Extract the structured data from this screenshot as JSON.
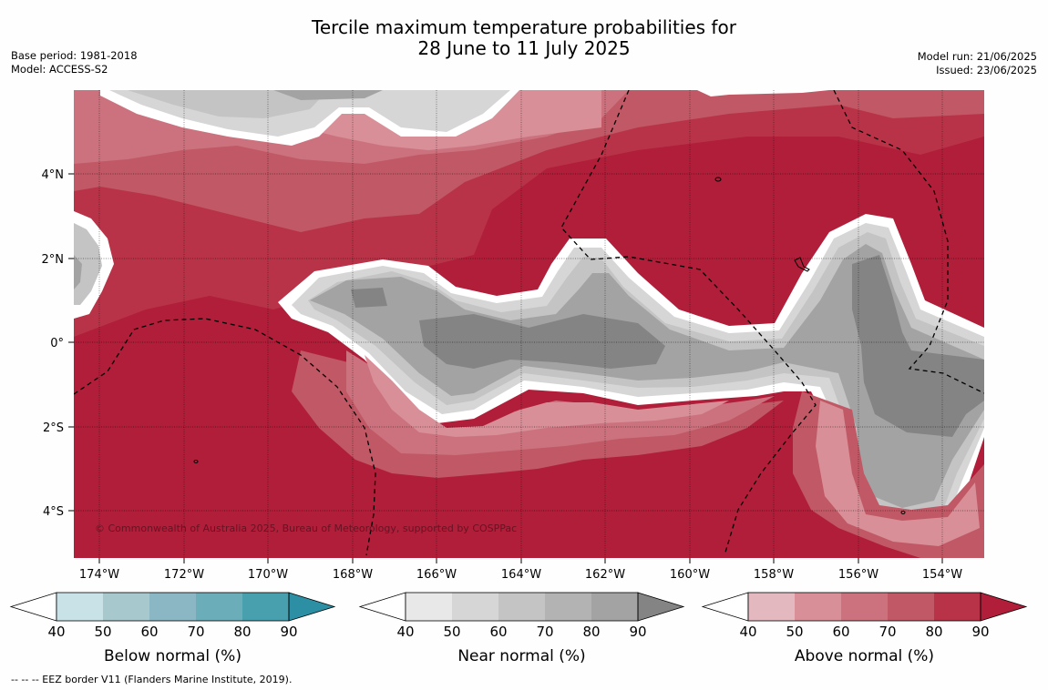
{
  "title": {
    "line1": "Tercile maximum temperature probabilities for",
    "line2": "28 June to 11 July 2025"
  },
  "meta_left": {
    "base_period": "Base period: 1981-2018",
    "model": "Model: ACCESS-S2"
  },
  "meta_right": {
    "model_run": "Model run: 21/06/2025",
    "issued": "Issued: 23/06/2025"
  },
  "map": {
    "copyright": "© Commonwealth of Australia 2025, Bureau of Meteorology, supported by COSPPac",
    "lon_labels": [
      "174°W",
      "172°W",
      "170°W",
      "168°W",
      "166°W",
      "164°W",
      "162°W",
      "160°W",
      "158°W",
      "156°W",
      "154°W"
    ],
    "lat_labels": [
      "4°N",
      "2°N",
      "0°",
      "2°S",
      "4°S"
    ]
  },
  "legends": [
    {
      "title": "Below normal (%)",
      "ticks": [
        "40",
        "50",
        "60",
        "70",
        "80",
        "90"
      ],
      "colors": [
        "#ffffff",
        "#c8e2e8",
        "#a7c8cd",
        "#8bb7c4",
        "#6badb9",
        "#489fae",
        "#2c8fa3"
      ]
    },
    {
      "title": "Near normal (%)",
      "ticks": [
        "40",
        "50",
        "60",
        "70",
        "80",
        "90"
      ],
      "colors": [
        "#ffffff",
        "#e8e8e8",
        "#d6d6d6",
        "#c4c4c4",
        "#b3b3b3",
        "#a3a3a3",
        "#848484"
      ]
    },
    {
      "title": "Above normal (%)",
      "ticks": [
        "40",
        "50",
        "60",
        "70",
        "80",
        "90"
      ],
      "colors": [
        "#ffffff",
        "#e3b9bf",
        "#d88f98",
        "#cc727e",
        "#c15865",
        "#b83347",
        "#b01e3a"
      ]
    }
  ],
  "footer": "--  --  -- EEZ border V11 (Flanders Marine Institute, 2019)."
}
